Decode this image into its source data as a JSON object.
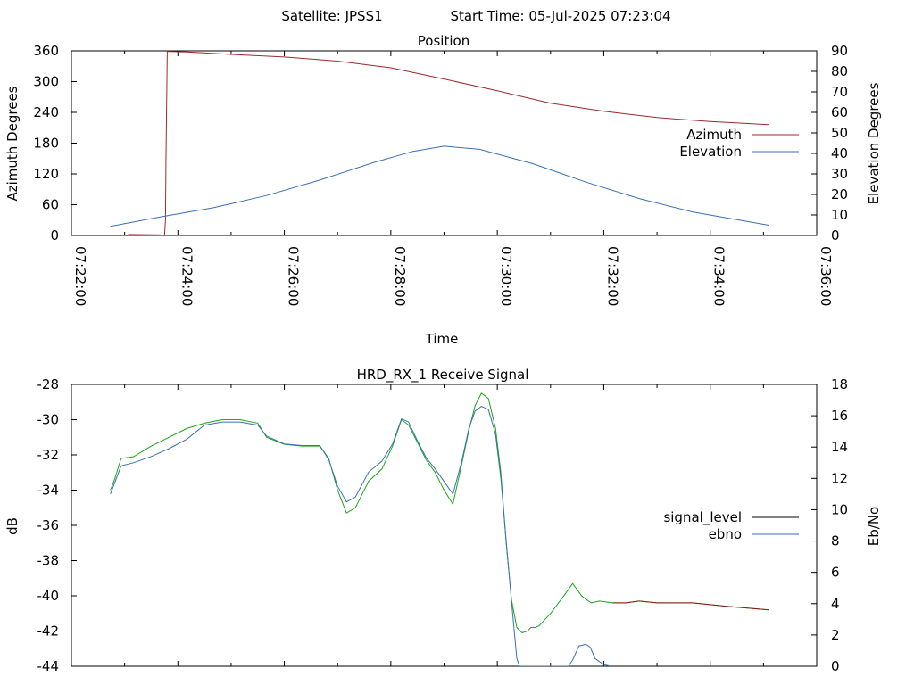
{
  "header": {
    "satellite_label": "Satellite: JPSS1",
    "start_time_label": "Start Time: 05-Jul-2025 07:23:04"
  },
  "chart_data": [
    {
      "type": "line",
      "title": "Position",
      "xlabel": "Time",
      "ylabel": "Azimuth Degrees",
      "y2label": "Elevation Degrees",
      "xlim": [
        0,
        840
      ],
      "ylim": [
        0,
        360
      ],
      "y2lim": [
        0,
        90
      ],
      "x_ticks": [
        0,
        120,
        240,
        360,
        480,
        600,
        720,
        840
      ],
      "x_tick_labels": [
        "07:22:00",
        "07:24:00",
        "07:26:00",
        "07:28:00",
        "07:30:00",
        "07:32:00",
        "07:34:00",
        "07:36:00"
      ],
      "y_ticks": [
        0,
        60,
        120,
        180,
        240,
        300,
        360
      ],
      "y2_ticks": [
        0,
        10,
        20,
        30,
        40,
        50,
        60,
        70,
        80,
        90
      ],
      "legend_position": "right",
      "series": [
        {
          "name": "Azimuth",
          "axis": "y",
          "color": "#9b2b2b",
          "x": [
            64,
            100,
            104,
            105,
            106,
            106.5,
            108,
            130,
            180,
            240,
            300,
            360,
            420,
            480,
            540,
            600,
            660,
            720,
            786
          ],
          "y": [
            2,
            1,
            0.5,
            2,
            30,
            140,
            359,
            358,
            353,
            348,
            340,
            327,
            305,
            282,
            258,
            242,
            230,
            222,
            216
          ]
        },
        {
          "name": "Elevation",
          "axis": "y2",
          "color": "#3b6fb5",
          "x": [
            44,
            100,
            160,
            220,
            280,
            340,
            385,
            420,
            460,
            520,
            580,
            640,
            700,
            786
          ],
          "y": [
            4.5,
            9,
            13.5,
            19.5,
            27,
            35.5,
            41,
            43.5,
            42,
            35,
            26,
            18,
            11.5,
            5
          ]
        }
      ]
    },
    {
      "type": "line",
      "title": "HRD_RX_1 Receive Signal",
      "ylabel": "dB",
      "y2label": "Eb/No",
      "xlim": [
        0,
        840
      ],
      "ylim": [
        -44,
        -28
      ],
      "y2lim": [
        0,
        18
      ],
      "y_ticks": [
        -44,
        -42,
        -40,
        -38,
        -36,
        -34,
        -32,
        -30,
        -28
      ],
      "y2_ticks": [
        0,
        2,
        4,
        6,
        8,
        10,
        12,
        14,
        16,
        18
      ],
      "legend_position": "right",
      "series": [
        {
          "name": "signal_level",
          "axis": "y",
          "color": "#8b1a1a",
          "draw_color": "#18a818",
          "x": [
            44,
            48,
            56,
            70,
            90,
            110,
            130,
            150,
            170,
            190,
            210,
            220,
            240,
            260,
            280,
            290,
            300,
            310,
            320,
            335,
            350,
            362,
            372,
            380,
            390,
            400,
            410,
            420,
            430,
            440,
            448,
            455,
            462,
            470,
            478,
            484,
            490,
            496,
            502,
            508,
            514,
            518,
            523,
            527,
            540,
            555,
            565,
            575,
            580,
            586,
            595,
            610,
            625,
            640,
            660,
            700,
            740,
            786
          ],
          "y": [
            -34,
            -33.5,
            -32.2,
            -32.1,
            -31.5,
            -31,
            -30.5,
            -30.2,
            -30,
            -30,
            -30.2,
            -31,
            -31.4,
            -31.5,
            -31.5,
            -32.2,
            -34,
            -35.3,
            -35,
            -33.5,
            -32.8,
            -31.5,
            -30,
            -30.3,
            -31.3,
            -32.3,
            -33,
            -34,
            -34.8,
            -32.5,
            -30.6,
            -29.2,
            -28.5,
            -28.8,
            -30.5,
            -33,
            -37,
            -40.2,
            -41.8,
            -42.1,
            -42,
            -41.8,
            -41.8,
            -41.7,
            -41,
            -40,
            -39.3,
            -40,
            -40.2,
            -40.4,
            -40.3,
            -40.4,
            -40.4,
            -40.3,
            -40.4,
            -40.4,
            -40.6,
            -40.8
          ]
        },
        {
          "name": "ebno",
          "axis": "y2",
          "color": "#3b6fb5",
          "draw_color": "#3b6fb5",
          "x": [
            44,
            48,
            56,
            70,
            90,
            110,
            130,
            150,
            170,
            190,
            210,
            220,
            240,
            260,
            280,
            290,
            300,
            310,
            320,
            335,
            350,
            362,
            372,
            380,
            390,
            400,
            410,
            420,
            430,
            440,
            448,
            455,
            462,
            470,
            478,
            484,
            490,
            496,
            502,
            505,
            560,
            565,
            572,
            580,
            585,
            590,
            595,
            600,
            608
          ],
          "y": [
            11,
            11.6,
            12.8,
            13,
            13.4,
            13.9,
            14.5,
            15.4,
            15.6,
            15.6,
            15.4,
            14.7,
            14.2,
            14.1,
            14.1,
            13.2,
            11.5,
            10.5,
            10.8,
            12.4,
            13.1,
            14.2,
            15.8,
            15.6,
            14.4,
            13.3,
            12.6,
            11.8,
            11,
            13.1,
            15.2,
            16.3,
            16.6,
            16.4,
            14.8,
            12,
            8,
            4.2,
            0.5,
            0,
            0,
            0.4,
            1.3,
            1.4,
            1.2,
            0.5,
            0.3,
            0.1,
            0
          ]
        }
      ]
    }
  ]
}
